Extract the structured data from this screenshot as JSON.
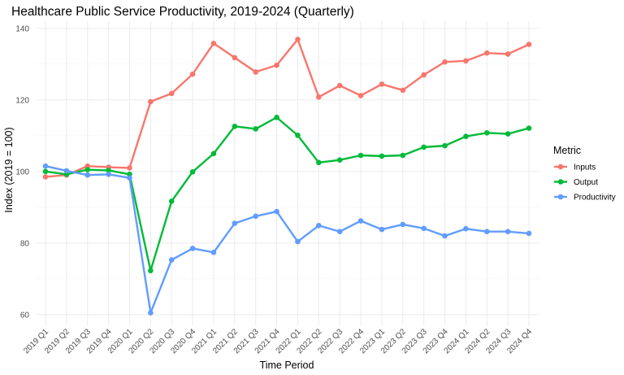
{
  "chart_data": {
    "type": "line",
    "title": "Healthcare Public Service Productivity, 2019-2024 (Quarterly)",
    "xlabel": "Time Period",
    "ylabel": "Index (2019 = 100)",
    "ylim": [
      57,
      142
    ],
    "yticks": [
      60,
      80,
      100,
      120,
      140
    ],
    "grid": true,
    "legend": {
      "title": "Metric",
      "position": "right"
    },
    "categories": [
      "2019 Q1",
      "2019 Q2",
      "2019 Q3",
      "2019 Q4",
      "2020 Q1",
      "2020 Q2",
      "2020 Q3",
      "2020 Q4",
      "2021 Q1",
      "2021 Q2",
      "2021 Q3",
      "2021 Q4",
      "2022 Q1",
      "2022 Q2",
      "2022 Q3",
      "2022 Q4",
      "2023 Q1",
      "2023 Q2",
      "2023 Q3",
      "2023 Q4",
      "2024 Q1",
      "2024 Q2",
      "2024 Q3",
      "2024 Q4"
    ],
    "series": [
      {
        "name": "Inputs",
        "color": "#F8766D",
        "values": [
          98.5,
          99.0,
          101.5,
          101.2,
          101.0,
          119.5,
          121.8,
          127.2,
          135.8,
          131.8,
          127.8,
          129.7,
          136.9,
          120.8,
          124.0,
          121.2,
          124.4,
          122.7,
          127.0,
          130.6,
          130.9,
          133.1,
          132.8,
          135.5
        ]
      },
      {
        "name": "Output",
        "color": "#00BA38",
        "values": [
          100.0,
          99.2,
          100.5,
          100.3,
          99.2,
          72.3,
          91.7,
          99.9,
          105.0,
          112.6,
          111.9,
          115.1,
          110.1,
          102.5,
          103.2,
          104.5,
          104.3,
          104.5,
          106.8,
          107.2,
          109.8,
          110.8,
          110.5,
          112.1
        ]
      },
      {
        "name": "Productivity",
        "color": "#619CFF",
        "values": [
          101.5,
          100.2,
          99.0,
          99.2,
          98.2,
          60.5,
          75.3,
          78.5,
          77.4,
          85.5,
          87.5,
          88.8,
          80.4,
          84.9,
          83.2,
          86.2,
          83.8,
          85.2,
          84.1,
          82.0,
          84.0,
          83.2,
          83.2,
          82.7
        ]
      }
    ]
  }
}
